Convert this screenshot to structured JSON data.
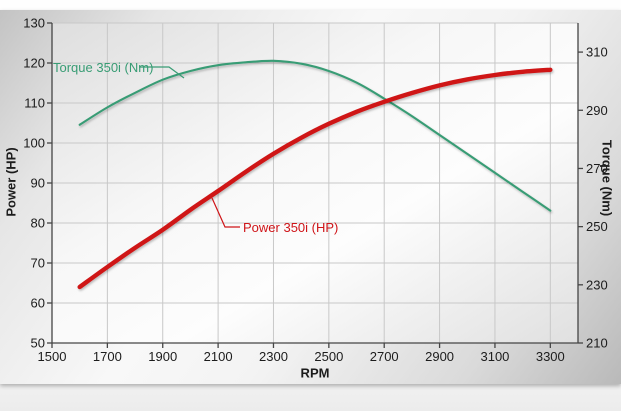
{
  "chart_data": {
    "type": "line",
    "title": "",
    "xlabel": "RPM",
    "ylabel_left": "Power (HP)",
    "ylabel_right": "Torque (Nm)",
    "x": [
      1600,
      1700,
      1800,
      1900,
      2000,
      2100,
      2200,
      2300,
      2400,
      2500,
      2600,
      2700,
      2800,
      2900,
      3000,
      3100,
      3200,
      3300
    ],
    "series": [
      {
        "name": "Power 350i (HP)",
        "axis": "left",
        "color": "#cf1418",
        "values": [
          64,
          69,
          73.8,
          78.3,
          83.3,
          88,
          92.8,
          97.3,
          101.3,
          104.8,
          107.8,
          110.3,
          112.5,
          114.4,
          115.9,
          117,
          117.8,
          118.3
        ]
      },
      {
        "name": "Torque 350i (Nm)",
        "axis": "right",
        "color": "#389c74",
        "values": [
          285,
          291,
          296,
          300.5,
          303.5,
          305.5,
          306.5,
          307,
          306,
          303.5,
          299.5,
          294,
          288,
          281.5,
          275,
          268.5,
          262,
          255.5
        ]
      }
    ],
    "x_range": [
      1500,
      3400
    ],
    "x_ticks": [
      1500,
      1700,
      1900,
      2100,
      2300,
      2500,
      2700,
      2900,
      3100,
      3300
    ],
    "left_range": [
      50,
      130
    ],
    "left_ticks": [
      50,
      60,
      70,
      80,
      90,
      100,
      110,
      120,
      130
    ],
    "right_range": [
      210,
      320
    ],
    "right_ticks": [
      210,
      230,
      250,
      270,
      290,
      310
    ],
    "grid": true,
    "legend": "none (in-plot series callout labels)",
    "colors": {
      "grid": "#c8c8c8",
      "axis": "#454545",
      "tick_text": "#1c1c1c"
    }
  }
}
